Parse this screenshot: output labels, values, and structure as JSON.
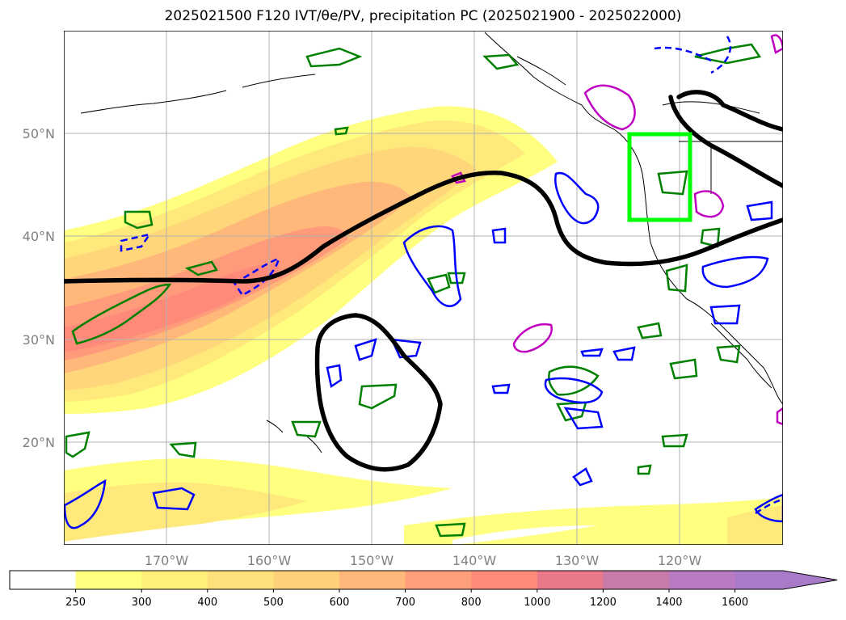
{
  "title": "2025021500 F120 IVT/θe/PV, precipitation PC (2025021900 - 2025022000)",
  "map": {
    "lat_labels": [
      "50°N",
      "40°N",
      "30°N",
      "20°N"
    ],
    "lon_labels": [
      "170°W",
      "160°W",
      "150°W",
      "140°W",
      "130°W",
      "120°W"
    ],
    "highlight_box_color": "#00ff00",
    "contour_colors": {
      "theta_e": "#000000",
      "pv_positive": "#008000",
      "pv_negative": "#0000ff",
      "precip": "#c000c0"
    }
  },
  "colorbar": {
    "ticks": [
      "250",
      "300",
      "400",
      "500",
      "600",
      "700",
      "800",
      "1000",
      "1200",
      "1400",
      "1600"
    ],
    "colors": [
      "#ffffff",
      "#ffff80",
      "#fff079",
      "#ffe07a",
      "#ffd07a",
      "#ffb87a",
      "#ffa07a",
      "#ff8a7a",
      "#e8788a",
      "#c87aa8",
      "#b87ac0",
      "#a87ac8"
    ]
  }
}
